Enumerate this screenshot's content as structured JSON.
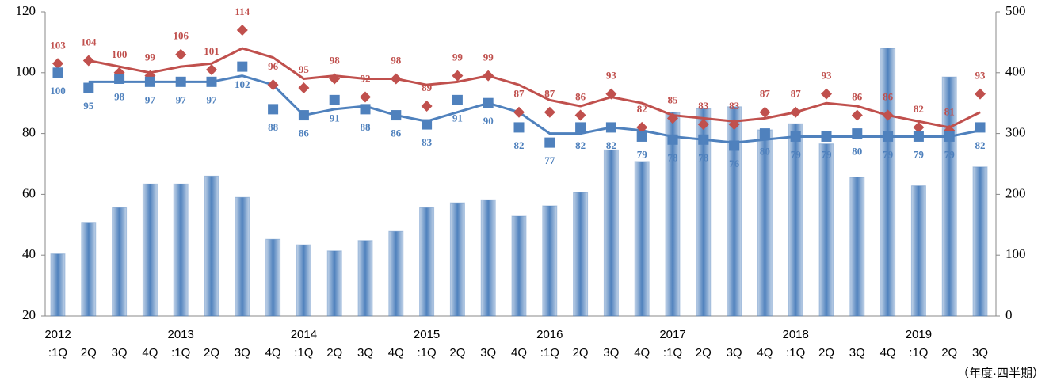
{
  "chart_data": {
    "type": "combo",
    "x_label": "（年度·四半期）",
    "categories": [
      [
        "2012",
        ":1Q"
      ],
      [
        "2Q"
      ],
      [
        "3Q"
      ],
      [
        "4Q"
      ],
      [
        "2013",
        ":1Q"
      ],
      [
        "2Q"
      ],
      [
        "3Q"
      ],
      [
        "4Q"
      ],
      [
        "2014",
        ":1Q"
      ],
      [
        "2Q"
      ],
      [
        "3Q"
      ],
      [
        "4Q"
      ],
      [
        "2015",
        ":1Q"
      ],
      [
        "2Q"
      ],
      [
        "3Q"
      ],
      [
        "4Q"
      ],
      [
        "2016",
        ":1Q"
      ],
      [
        "2Q"
      ],
      [
        "3Q"
      ],
      [
        "4Q"
      ],
      [
        "2017",
        ":1Q"
      ],
      [
        "2Q"
      ],
      [
        "3Q"
      ],
      [
        "4Q"
      ],
      [
        "2018",
        ":1Q"
      ],
      [
        "2Q"
      ],
      [
        "3Q"
      ],
      [
        "4Q"
      ],
      [
        "2019",
        ":1Q"
      ],
      [
        "2Q"
      ],
      [
        "3Q"
      ]
    ],
    "ylim": [
      20,
      120
    ],
    "yticks": [
      20,
      40,
      60,
      80,
      100,
      120
    ],
    "y2lim": [
      0,
      500
    ],
    "y2ticks": [
      0,
      100,
      200,
      300,
      400,
      500
    ],
    "series": [
      {
        "type": "bar",
        "axis": "y2",
        "color": "#4f81bd",
        "values": [
          102,
          154,
          178,
          217,
          217,
          230,
          195,
          126,
          117,
          107,
          124,
          139,
          178,
          186,
          191,
          164,
          181,
          203,
          273,
          254,
          335,
          341,
          344,
          306,
          316,
          283,
          228,
          440,
          214,
          393,
          245
        ]
      },
      {
        "type": "line",
        "color": "#c0504d",
        "values": [
          null,
          104,
          102,
          100,
          102,
          103,
          108,
          105,
          98,
          99,
          98,
          98,
          96,
          97,
          99,
          96,
          91,
          89,
          92,
          90,
          86,
          85,
          84,
          85,
          87,
          90,
          89,
          86,
          84,
          82,
          87
        ]
      },
      {
        "type": "line",
        "color": "#4f81bd",
        "values": [
          null,
          97,
          97,
          97,
          97,
          97,
          99,
          96,
          86,
          88,
          89,
          86,
          84,
          87,
          90,
          87,
          80,
          80,
          82,
          81,
          79,
          78,
          77,
          78,
          79,
          79,
          79,
          79,
          79,
          79,
          81
        ]
      },
      {
        "type": "scatter",
        "marker": "diamond",
        "label_position": "above",
        "color": "#c0504d",
        "values": [
          103,
          104,
          100,
          99,
          106,
          101,
          114,
          96,
          95,
          98,
          92,
          98,
          89,
          99,
          99,
          87,
          87,
          86,
          93,
          82,
          85,
          83,
          83,
          87,
          87,
          93,
          86,
          86,
          82,
          81,
          93
        ]
      },
      {
        "type": "scatter",
        "marker": "square",
        "label_position": "below",
        "color": "#4f81bd",
        "values": [
          100,
          95,
          98,
          97,
          97,
          97,
          102,
          88,
          86,
          91,
          88,
          86,
          83,
          91,
          90,
          82,
          77,
          82,
          82,
          79,
          78,
          78,
          76,
          80,
          79,
          79,
          80,
          79,
          79,
          79,
          82
        ]
      }
    ]
  }
}
